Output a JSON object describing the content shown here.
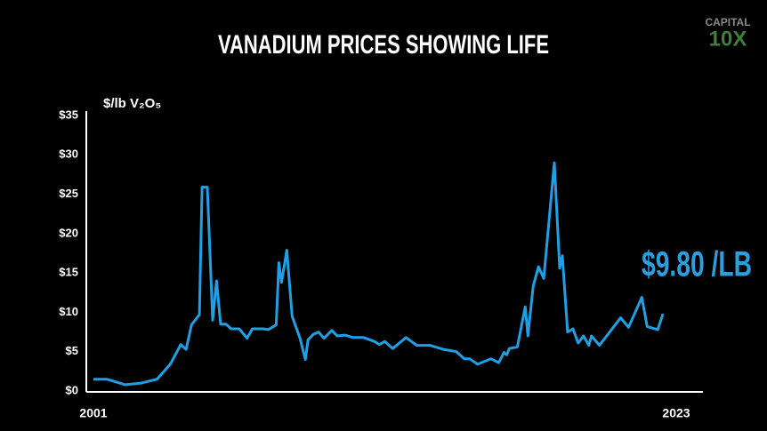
{
  "chart_data": {
    "type": "line",
    "title": "VANADIUM PRICES SHOWING LIFE",
    "y_label": "$/lb V₂O₅",
    "annotation": "$9.80 /LB",
    "color": "#1ea0e6",
    "grid": false,
    "xlim": [
      2001,
      2023
    ],
    "xticks": [
      2001,
      2023
    ],
    "ylim": [
      0,
      35
    ],
    "yticks": [
      {
        "value": 0,
        "label": "$0"
      },
      {
        "value": 5,
        "label": "$5"
      },
      {
        "value": 10,
        "label": "$10"
      },
      {
        "value": 15,
        "label": "$15"
      },
      {
        "value": 20,
        "label": "$20"
      },
      {
        "value": 25,
        "label": "$25"
      },
      {
        "value": 30,
        "label": "$30"
      },
      {
        "value": 35,
        "label": "$35"
      }
    ],
    "x": [
      2001.0,
      2001.5,
      2002.2,
      2002.8,
      2003.4,
      2003.9,
      2004.3,
      2004.5,
      2004.7,
      2005.0,
      2005.1,
      2005.3,
      2005.5,
      2005.65,
      2005.8,
      2006.0,
      2006.2,
      2006.5,
      2006.8,
      2007.0,
      2007.4,
      2007.6,
      2007.9,
      2008.0,
      2008.1,
      2008.3,
      2008.5,
      2008.8,
      2009.0,
      2009.1,
      2009.3,
      2009.5,
      2009.7,
      2010.0,
      2010.2,
      2010.5,
      2010.8,
      2011.2,
      2011.6,
      2011.8,
      2012.0,
      2012.3,
      2012.8,
      2013.2,
      2013.7,
      2014.2,
      2014.7,
      2015.0,
      2015.2,
      2015.5,
      2016.0,
      2016.3,
      2016.5,
      2016.6,
      2016.7,
      2017.0,
      2017.3,
      2017.4,
      2017.6,
      2017.8,
      2018.0,
      2018.4,
      2018.6,
      2018.7,
      2018.9,
      2019.1,
      2019.3,
      2019.5,
      2019.7,
      2019.8,
      2020.1,
      2020.9,
      2021.2,
      2021.7,
      2021.9,
      2022.3,
      2022.5
    ],
    "values": [
      1.5,
      1.5,
      0.8,
      1.0,
      1.5,
      3.4,
      5.9,
      5.3,
      8.4,
      9.7,
      25.9,
      25.9,
      9.0,
      14.0,
      8.5,
      8.5,
      7.9,
      7.9,
      6.7,
      7.9,
      7.9,
      7.8,
      8.4,
      16.3,
      13.8,
      17.9,
      9.5,
      6.7,
      4.0,
      6.5,
      7.2,
      7.5,
      6.7,
      7.7,
      7.0,
      7.1,
      6.8,
      6.8,
      6.3,
      5.9,
      6.3,
      5.4,
      6.8,
      5.8,
      5.8,
      5.3,
      5.0,
      4.1,
      4.1,
      3.4,
      4.1,
      3.6,
      4.9,
      4.6,
      5.4,
      5.6,
      10.7,
      7.0,
      13.3,
      15.8,
      14.3,
      29.0,
      15.6,
      17.2,
      7.5,
      7.9,
      6.1,
      7.0,
      5.8,
      7.0,
      5.8,
      9.3,
      8.1,
      11.9,
      8.2,
      7.8,
      9.8
    ]
  },
  "logo": {
    "line1": "CAPITAL",
    "line2": "10X"
  }
}
